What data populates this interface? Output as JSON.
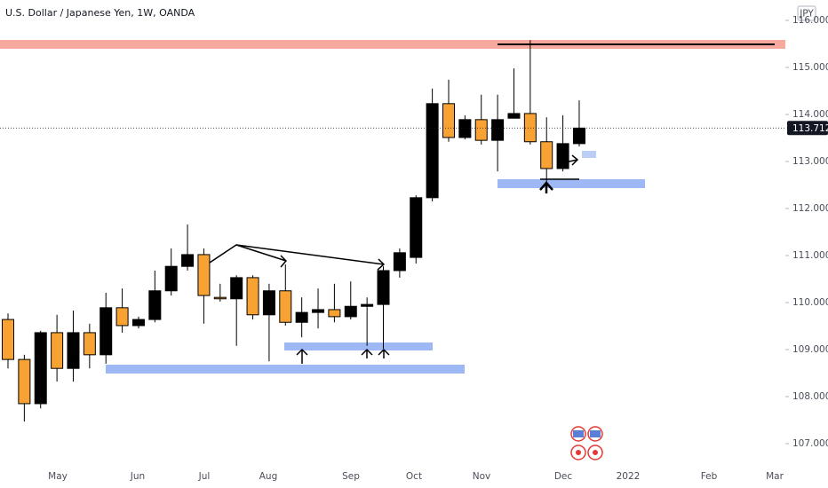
{
  "chart_data": {
    "type": "candlestick",
    "title": "U.S. Dollar / Japanese Yen, 1W, OANDA",
    "currency": "JPY",
    "last_price": {
      "value": 113.712,
      "label": "113.712"
    },
    "x_labels": [
      "May",
      "Jun",
      "Jul",
      "Aug",
      "Sep",
      "Oct",
      "Nov",
      "Dec",
      "2022",
      "Feb",
      "Mar"
    ],
    "up_color": "#000000",
    "down_color": "#f7a233",
    "open": [
      109.64,
      108.79,
      107.85,
      109.36,
      108.6,
      109.36,
      108.89,
      109.89,
      109.51,
      109.64,
      110.25,
      110.77,
      111.02,
      110.11,
      110.08,
      110.53,
      109.74,
      110.25,
      109.58,
      109.79,
      109.85,
      109.7,
      109.92,
      109.96,
      110.68,
      110.96,
      112.23,
      114.23,
      113.51,
      113.89,
      113.45,
      113.92,
      114.02,
      113.42,
      112.85,
      113.38
    ],
    "high": [
      109.77,
      108.89,
      109.4,
      109.74,
      109.83,
      109.55,
      110.21,
      110.3,
      109.7,
      110.68,
      111.15,
      111.66,
      111.15,
      110.4,
      110.58,
      110.58,
      110.4,
      110.81,
      110.11,
      110.3,
      110.4,
      110.45,
      110.11,
      110.77,
      111.15,
      112.28,
      114.55,
      114.74,
      113.98,
      114.42,
      114.42,
      114.98,
      115.58,
      113.94,
      113.98,
      114.3
    ],
    "low": [
      108.6,
      107.47,
      107.75,
      108.32,
      108.32,
      108.6,
      108.7,
      109.36,
      109.45,
      109.58,
      110.15,
      110.68,
      109.55,
      110.02,
      109.08,
      109.64,
      108.75,
      109.51,
      109.26,
      109.45,
      109.58,
      109.64,
      109.08,
      109.02,
      110.53,
      110.83,
      112.15,
      113.42,
      113.47,
      113.36,
      112.79,
      113.92,
      113.36,
      112.47,
      112.79,
      113.32
    ],
    "close": [
      108.79,
      107.85,
      109.36,
      108.6,
      109.36,
      108.89,
      109.89,
      109.51,
      109.64,
      110.25,
      110.77,
      111.02,
      110.15,
      110.08,
      110.53,
      109.74,
      110.25,
      109.58,
      109.79,
      109.85,
      109.7,
      109.92,
      109.96,
      110.68,
      111.06,
      112.23,
      114.23,
      113.51,
      113.89,
      113.45,
      113.89,
      114.02,
      113.42,
      112.85,
      113.38,
      113.71
    ],
    "ylim": [
      106.585,
      116.434
    ],
    "yticks": [
      {
        "value": 107,
        "label": "107.000"
      },
      {
        "value": 108,
        "label": "108.000"
      },
      {
        "value": 109,
        "label": "109.000"
      },
      {
        "value": 110,
        "label": "110.000"
      },
      {
        "value": 111,
        "label": "111.000"
      },
      {
        "value": 112,
        "label": "112.000"
      },
      {
        "value": 113,
        "label": "113.000"
      },
      {
        "value": 114,
        "label": "114.000"
      },
      {
        "value": 115,
        "label": "115.000"
      },
      {
        "value": 116,
        "label": "116.000"
      }
    ]
  }
}
